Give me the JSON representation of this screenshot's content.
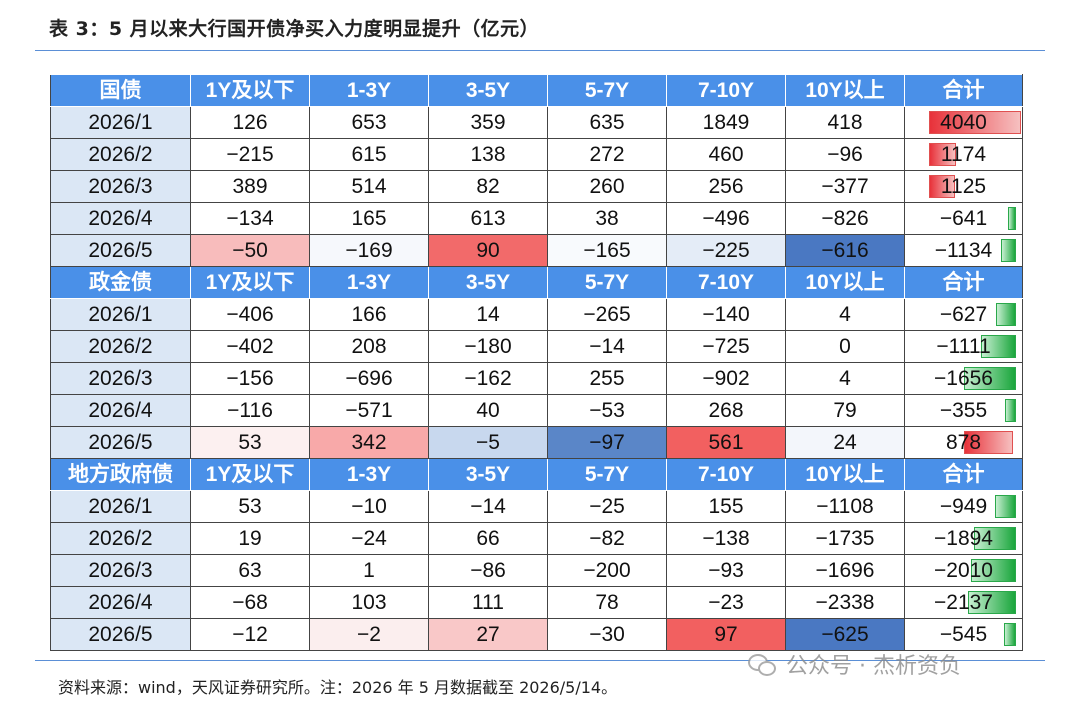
{
  "title": "表 3：5 月以来大行国开债净买入力度明显提升（亿元）",
  "columns": [
    "1Y及以下",
    "1-3Y",
    "3-5Y",
    "5-7Y",
    "7-10Y",
    "10Y以上",
    "合计"
  ],
  "colors": {
    "header": "#4a90e8",
    "rowlabel": "#dbe7f5",
    "positive": "#e8323a",
    "negative": "#1aa63c",
    "cool": "#4a78c2"
  },
  "sections": [
    {
      "name": "国债",
      "max_abs": 4040,
      "rows": [
        {
          "period": "2026/1",
          "values": [
            "126",
            "653",
            "359",
            "635",
            "1849",
            "418"
          ],
          "total": "4040",
          "total_value": 4040
        },
        {
          "period": "2026/2",
          "values": [
            "−215",
            "615",
            "138",
            "272",
            "460",
            "−96"
          ],
          "total": "1174",
          "total_value": 1174
        },
        {
          "period": "2026/3",
          "values": [
            "389",
            "514",
            "82",
            "260",
            "256",
            "−377"
          ],
          "total": "1125",
          "total_value": 1125
        },
        {
          "period": "2026/4",
          "values": [
            "−134",
            "165",
            "613",
            "38",
            "−496",
            "−826"
          ],
          "total": "−641",
          "total_value": -641
        },
        {
          "period": "2026/5",
          "values": [
            "−50",
            "−169",
            "90",
            "−165",
            "−225",
            "−616"
          ],
          "total": "−1134",
          "total_value": -1134,
          "heat": [
            "#f8bcbc",
            "#f6f8fc",
            "#f26a6a",
            "#f8fafd",
            "#e4ecf7",
            "#4a78c2"
          ]
        }
      ]
    },
    {
      "name": "政金债",
      "max_abs": 1656,
      "rows": [
        {
          "period": "2026/1",
          "values": [
            "−406",
            "166",
            "14",
            "−265",
            "−140",
            "4"
          ],
          "total": "−627",
          "total_value": -627
        },
        {
          "period": "2026/2",
          "values": [
            "−402",
            "208",
            "−180",
            "−14",
            "−725",
            "0"
          ],
          "total": "−1111",
          "total_value": -1111
        },
        {
          "period": "2026/3",
          "values": [
            "−156",
            "−696",
            "−162",
            "255",
            "−902",
            "4"
          ],
          "total": "−1656",
          "total_value": -1656
        },
        {
          "period": "2026/4",
          "values": [
            "−116",
            "−571",
            "40",
            "−53",
            "268",
            "79"
          ],
          "total": "−355",
          "total_value": -355
        },
        {
          "period": "2026/5",
          "values": [
            "53",
            "342",
            "−5",
            "−97",
            "561",
            "24"
          ],
          "total": "878",
          "total_value": 878,
          "heat": [
            "#fcf0f0",
            "#f8a9a9",
            "#c8d8ee",
            "#5a86c8",
            "#f26060",
            "#f3f6fb"
          ]
        }
      ]
    },
    {
      "name": "地方政府债",
      "max_abs": 2338,
      "rows": [
        {
          "period": "2026/1",
          "values": [
            "53",
            "−10",
            "−14",
            "−25",
            "155",
            "−1108"
          ],
          "total": "−949",
          "total_value": -949
        },
        {
          "period": "2026/2",
          "values": [
            "19",
            "−24",
            "66",
            "−82",
            "−138",
            "−1735"
          ],
          "total": "−1894",
          "total_value": -1894
        },
        {
          "period": "2026/3",
          "values": [
            "63",
            "1",
            "−86",
            "−200",
            "−93",
            "−1696"
          ],
          "total": "−2010",
          "total_value": -2010
        },
        {
          "period": "2026/4",
          "values": [
            "−68",
            "103",
            "111",
            "78",
            "−23",
            "−2338"
          ],
          "total": "−2137",
          "total_value": -2137
        },
        {
          "period": "2026/5",
          "values": [
            "−12",
            "−2",
            "27",
            "−30",
            "97",
            "−625"
          ],
          "total": "−545",
          "total_value": -545,
          "heat": [
            "#ffffff",
            "#fbeeee",
            "#f9c8c8",
            "#ffffff",
            "#f26060",
            "#4a78c2"
          ]
        }
      ]
    }
  ],
  "source": "资料来源：wind，天风证券研究所。注：2026 年 5 月数据截至 2026/5/14。",
  "watermark": "公众号 · 杰析资负"
}
